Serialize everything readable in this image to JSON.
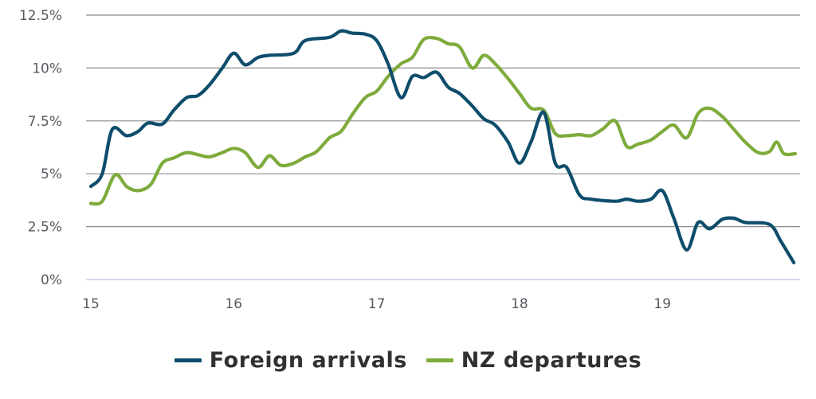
{
  "chart_data": {
    "type": "line",
    "xlabel": "",
    "ylabel": "",
    "x_ticks": [
      "15",
      "16",
      "17",
      "18",
      "19"
    ],
    "y_ticks": [
      "0%",
      "2.5%",
      "5%",
      "7.5%",
      "10%",
      "12.5%"
    ],
    "xlim": [
      15,
      19.93
    ],
    "ylim": [
      0,
      12.5
    ],
    "grid": true,
    "legend_position": "bottom",
    "series": [
      {
        "name": "Foreign arrivals",
        "color": "#0e4d6b",
        "points": [
          [
            15.0,
            4.4
          ],
          [
            15.08,
            5.0
          ],
          [
            15.15,
            7.1
          ],
          [
            15.25,
            6.8
          ],
          [
            15.33,
            7.0
          ],
          [
            15.4,
            7.4
          ],
          [
            15.5,
            7.35
          ],
          [
            15.58,
            8.0
          ],
          [
            15.67,
            8.6
          ],
          [
            15.75,
            8.7
          ],
          [
            15.83,
            9.2
          ],
          [
            15.92,
            10.0
          ],
          [
            16.0,
            10.7
          ],
          [
            16.08,
            10.15
          ],
          [
            16.17,
            10.5
          ],
          [
            16.25,
            10.6
          ],
          [
            16.42,
            10.7
          ],
          [
            16.5,
            11.3
          ],
          [
            16.67,
            11.45
          ],
          [
            16.75,
            11.75
          ],
          [
            16.83,
            11.65
          ],
          [
            16.92,
            11.6
          ],
          [
            17.0,
            11.3
          ],
          [
            17.08,
            10.2
          ],
          [
            17.17,
            8.6
          ],
          [
            17.25,
            9.6
          ],
          [
            17.33,
            9.55
          ],
          [
            17.42,
            9.8
          ],
          [
            17.5,
            9.1
          ],
          [
            17.58,
            8.8
          ],
          [
            17.67,
            8.2
          ],
          [
            17.75,
            7.6
          ],
          [
            17.83,
            7.3
          ],
          [
            17.92,
            6.5
          ],
          [
            18.0,
            5.5
          ],
          [
            18.08,
            6.5
          ],
          [
            18.17,
            7.9
          ],
          [
            18.25,
            5.5
          ],
          [
            18.33,
            5.3
          ],
          [
            18.42,
            4.0
          ],
          [
            18.5,
            3.8
          ],
          [
            18.67,
            3.7
          ],
          [
            18.75,
            3.8
          ],
          [
            18.83,
            3.7
          ],
          [
            18.92,
            3.8
          ],
          [
            19.0,
            4.2
          ],
          [
            19.08,
            2.9
          ],
          [
            19.17,
            1.4
          ],
          [
            19.25,
            2.7
          ],
          [
            19.33,
            2.4
          ],
          [
            19.42,
            2.85
          ],
          [
            19.5,
            2.9
          ],
          [
            19.58,
            2.7
          ],
          [
            19.75,
            2.6
          ],
          [
            19.83,
            1.8
          ],
          [
            19.92,
            0.8
          ]
        ]
      },
      {
        "name": "NZ departures",
        "color": "#7eab3c",
        "points": [
          [
            15.0,
            3.6
          ],
          [
            15.08,
            3.7
          ],
          [
            15.17,
            4.95
          ],
          [
            15.25,
            4.4
          ],
          [
            15.33,
            4.2
          ],
          [
            15.42,
            4.5
          ],
          [
            15.5,
            5.5
          ],
          [
            15.58,
            5.75
          ],
          [
            15.67,
            6.0
          ],
          [
            15.75,
            5.9
          ],
          [
            15.83,
            5.8
          ],
          [
            15.92,
            6.0
          ],
          [
            16.0,
            6.2
          ],
          [
            16.08,
            6.0
          ],
          [
            16.17,
            5.3
          ],
          [
            16.25,
            5.85
          ],
          [
            16.33,
            5.4
          ],
          [
            16.42,
            5.5
          ],
          [
            16.5,
            5.8
          ],
          [
            16.58,
            6.05
          ],
          [
            16.67,
            6.7
          ],
          [
            16.75,
            7.0
          ],
          [
            16.83,
            7.8
          ],
          [
            16.92,
            8.6
          ],
          [
            17.0,
            8.9
          ],
          [
            17.08,
            9.6
          ],
          [
            17.17,
            10.2
          ],
          [
            17.25,
            10.5
          ],
          [
            17.33,
            11.35
          ],
          [
            17.42,
            11.4
          ],
          [
            17.5,
            11.15
          ],
          [
            17.58,
            11.0
          ],
          [
            17.67,
            10.0
          ],
          [
            17.75,
            10.6
          ],
          [
            17.83,
            10.2
          ],
          [
            17.92,
            9.5
          ],
          [
            18.0,
            8.8
          ],
          [
            18.08,
            8.1
          ],
          [
            18.17,
            8.0
          ],
          [
            18.25,
            6.9
          ],
          [
            18.33,
            6.8
          ],
          [
            18.42,
            6.85
          ],
          [
            18.5,
            6.8
          ],
          [
            18.58,
            7.1
          ],
          [
            18.67,
            7.5
          ],
          [
            18.75,
            6.3
          ],
          [
            18.83,
            6.4
          ],
          [
            18.92,
            6.6
          ],
          [
            19.0,
            7.0
          ],
          [
            19.08,
            7.3
          ],
          [
            19.17,
            6.7
          ],
          [
            19.25,
            7.85
          ],
          [
            19.33,
            8.1
          ],
          [
            19.42,
            7.7
          ],
          [
            19.5,
            7.1
          ],
          [
            19.58,
            6.5
          ],
          [
            19.67,
            6.0
          ],
          [
            19.75,
            6.05
          ],
          [
            19.8,
            6.5
          ],
          [
            19.85,
            5.95
          ],
          [
            19.93,
            5.95
          ]
        ]
      }
    ]
  }
}
